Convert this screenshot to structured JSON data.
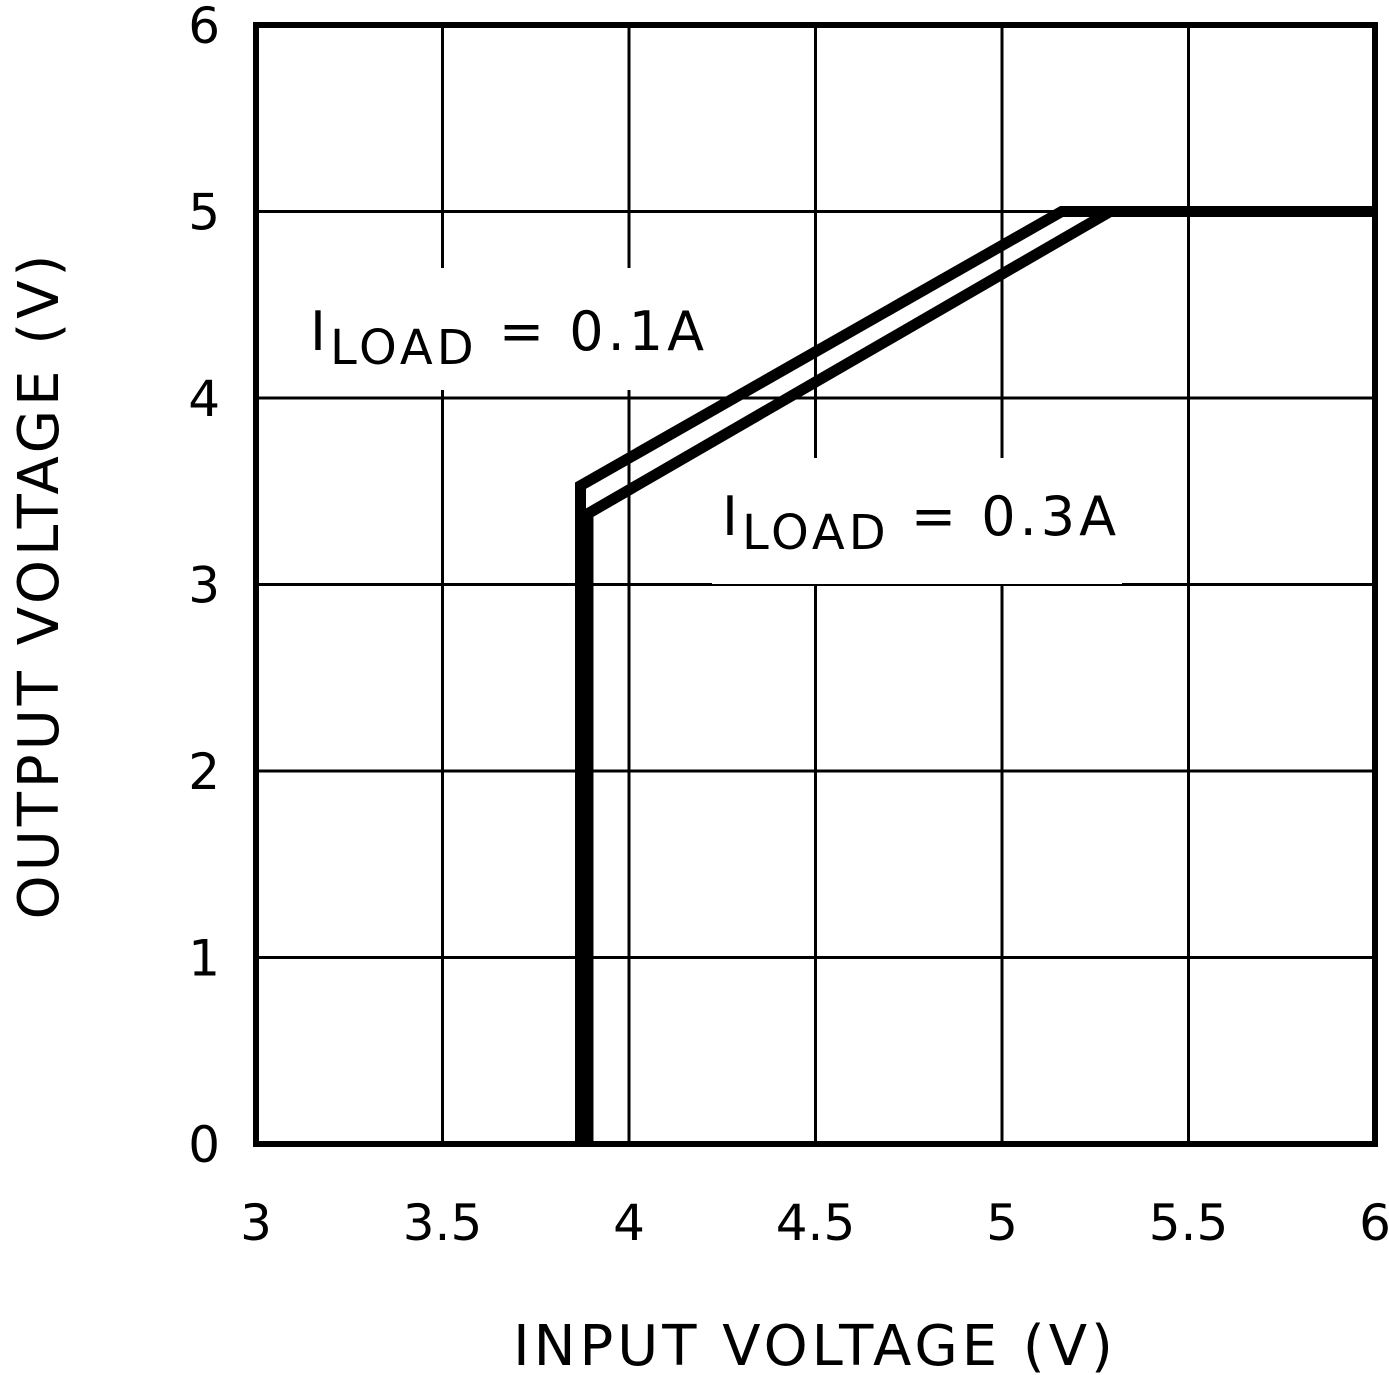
{
  "chart_data": {
    "type": "line",
    "title": "",
    "xlabel": "INPUT VOLTAGE (V)",
    "ylabel": "OUTPUT VOLTAGE (V)",
    "xlim": [
      3,
      6
    ],
    "ylim": [
      0,
      6
    ],
    "grid": true,
    "xticks": [
      "3",
      "3.5",
      "4",
      "4.5",
      "5",
      "5.5",
      "6"
    ],
    "yticks": [
      "0",
      "1",
      "2",
      "3",
      "4",
      "5",
      "6"
    ],
    "series": [
      {
        "name": "I_LOAD = 0.1A",
        "label_main": "I",
        "label_sub": "LOAD",
        "label_rest": " = 0.1A",
        "x": [
          3.87,
          3.87,
          5.16,
          6.0
        ],
        "y": [
          0,
          3.53,
          5.0,
          5.0
        ]
      },
      {
        "name": "I_LOAD = 0.3A",
        "label_main": "I",
        "label_sub": "LOAD",
        "label_rest": " = 0.3A",
        "x": [
          3.89,
          3.89,
          5.29,
          6.0
        ],
        "y": [
          0,
          3.38,
          5.0,
          5.0
        ]
      }
    ],
    "line_color": "#000000"
  }
}
